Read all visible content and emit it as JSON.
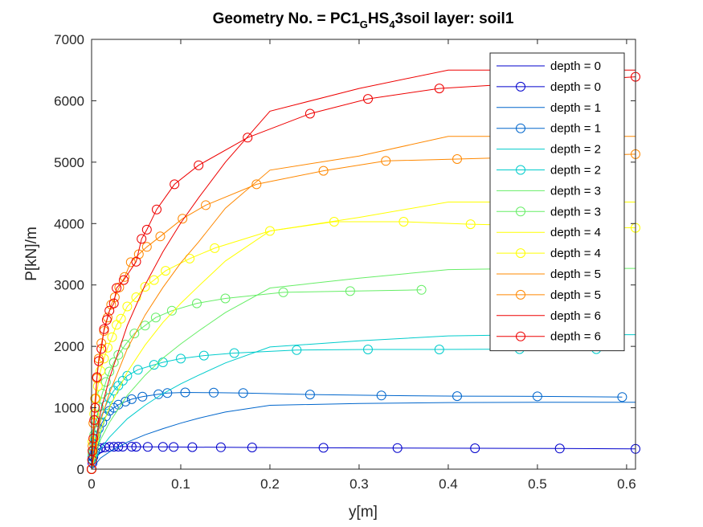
{
  "chart_data": {
    "type": "line",
    "title": {
      "prefix": "Geometry No. = PC1",
      "sub1": "G",
      "mid": "HS",
      "sub2": "4",
      "suffix": "3soil layer: soil1"
    },
    "xlabel": "y[m]",
    "ylabel": "P[kN]/m",
    "xlim": [
      0,
      0.61
    ],
    "ylim": [
      0,
      7000
    ],
    "xticks": [
      0,
      0.1,
      0.2,
      0.3,
      0.4,
      0.5,
      0.6
    ],
    "xtick_labels": [
      "0",
      "0.1",
      "0.2",
      "0.3",
      "0.4",
      "0.5",
      "0.6"
    ],
    "yticks": [
      0,
      1000,
      2000,
      3000,
      4000,
      5000,
      6000,
      7000
    ],
    "ytick_labels": [
      "0",
      "1000",
      "2000",
      "3000",
      "4000",
      "5000",
      "6000",
      "7000"
    ],
    "grid": false,
    "legend_position": "top-right",
    "series": [
      {
        "name": "depth  = 0",
        "color": "#0000cc",
        "marker": "none",
        "x": [
          0,
          0.61
        ],
        "y": [
          0,
          0
        ]
      },
      {
        "name": "depth  = 0",
        "color": "#0000cc",
        "marker": "circle",
        "x": [
          0,
          0.001,
          0.002,
          0.004,
          0.007,
          0.01,
          0.015,
          0.02,
          0.025,
          0.03,
          0.035,
          0.045,
          0.05,
          0.063,
          0.08,
          0.092,
          0.113,
          0.145,
          0.18,
          0.26,
          0.343,
          0.43,
          0.525,
          0.61
        ],
        "y": [
          0,
          100,
          200,
          280,
          320,
          340,
          355,
          362,
          365,
          366,
          366,
          366,
          365,
          364,
          363,
          361,
          359,
          356,
          353,
          348,
          344,
          340,
          336,
          330
        ]
      },
      {
        "name": "depth  = 1",
        "color": "#0066cc",
        "marker": "none",
        "x": [
          0,
          0.01,
          0.02,
          0.04,
          0.06,
          0.08,
          0.1,
          0.12,
          0.15,
          0.2,
          0.3,
          0.4,
          0.5,
          0.61
        ],
        "y": [
          0,
          180,
          280,
          440,
          560,
          660,
          750,
          830,
          930,
          1040,
          1070,
          1085,
          1090,
          1090
        ]
      },
      {
        "name": "depth  = 1",
        "color": "#0066cc",
        "marker": "circle",
        "x": [
          0,
          0.001,
          0.003,
          0.005,
          0.008,
          0.012,
          0.016,
          0.02,
          0.025,
          0.03,
          0.038,
          0.045,
          0.057,
          0.075,
          0.085,
          0.105,
          0.137,
          0.17,
          0.245,
          0.325,
          0.41,
          0.5,
          0.595
        ],
        "y": [
          0,
          200,
          400,
          550,
          660,
          760,
          860,
          950,
          1000,
          1050,
          1100,
          1140,
          1180,
          1220,
          1240,
          1250,
          1245,
          1240,
          1215,
          1200,
          1190,
          1185,
          1175
        ]
      },
      {
        "name": "depth  = 2",
        "color": "#00cccc",
        "marker": "none",
        "x": [
          0,
          0.01,
          0.02,
          0.04,
          0.06,
          0.08,
          0.1,
          0.12,
          0.15,
          0.2,
          0.3,
          0.4,
          0.5,
          0.61
        ],
        "y": [
          0,
          330,
          520,
          820,
          1040,
          1230,
          1390,
          1530,
          1730,
          1990,
          2090,
          2170,
          2190,
          2190
        ]
      },
      {
        "name": "depth  = 2",
        "color": "#00cccc",
        "marker": "circle",
        "x": [
          0,
          0.001,
          0.002,
          0.004,
          0.006,
          0.009,
          0.012,
          0.016,
          0.02,
          0.025,
          0.03,
          0.035,
          0.04,
          0.052,
          0.07,
          0.08,
          0.1,
          0.126,
          0.16,
          0.23,
          0.31,
          0.39,
          0.48,
          0.566
        ],
        "y": [
          0,
          160,
          300,
          480,
          620,
          760,
          900,
          1040,
          1160,
          1280,
          1360,
          1440,
          1520,
          1620,
          1700,
          1740,
          1800,
          1850,
          1890,
          1940,
          1950,
          1950,
          1955,
          1955
        ]
      },
      {
        "name": "depth  = 3",
        "color": "#66ee66",
        "marker": "none",
        "x": [
          0,
          0.01,
          0.02,
          0.04,
          0.06,
          0.08,
          0.1,
          0.12,
          0.15,
          0.2,
          0.3,
          0.4,
          0.5,
          0.61
        ],
        "y": [
          0,
          480,
          760,
          1200,
          1530,
          1810,
          2040,
          2250,
          2550,
          2950,
          3110,
          3250,
          3270,
          3270
        ]
      },
      {
        "name": "depth  = 3",
        "color": "#66ee66",
        "marker": "circle",
        "x": [
          0,
          0.001,
          0.003,
          0.005,
          0.008,
          0.012,
          0.016,
          0.02,
          0.025,
          0.03,
          0.038,
          0.048,
          0.06,
          0.072,
          0.09,
          0.118,
          0.15,
          0.215,
          0.29,
          0.37
        ],
        "y": [
          0,
          250,
          560,
          800,
          1010,
          1230,
          1420,
          1590,
          1740,
          1860,
          2030,
          2210,
          2340,
          2470,
          2580,
          2700,
          2780,
          2880,
          2900,
          2920
        ]
      },
      {
        "name": "depth  = 4",
        "color": "#ffff00",
        "marker": "none",
        "x": [
          0,
          0.01,
          0.02,
          0.04,
          0.06,
          0.08,
          0.1,
          0.12,
          0.15,
          0.2,
          0.3,
          0.4,
          0.5,
          0.61
        ],
        "y": [
          0,
          630,
          1000,
          1580,
          2020,
          2390,
          2700,
          2980,
          3390,
          3880,
          4100,
          4350,
          4350,
          4350
        ]
      },
      {
        "name": "depth  = 4",
        "color": "#ffff00",
        "marker": "circle",
        "x": [
          0,
          0.001,
          0.003,
          0.005,
          0.007,
          0.01,
          0.014,
          0.018,
          0.023,
          0.028,
          0.033,
          0.04,
          0.05,
          0.06,
          0.07,
          0.083,
          0.11,
          0.138,
          0.2,
          0.272,
          0.35,
          0.425,
          0.61
        ],
        "y": [
          0,
          450,
          900,
          1150,
          1350,
          1600,
          1800,
          1980,
          2150,
          2350,
          2450,
          2650,
          2800,
          2970,
          3080,
          3230,
          3430,
          3600,
          3880,
          4030,
          4030,
          3990,
          3930
        ]
      },
      {
        "name": "depth  = 5",
        "color": "#ff8800",
        "marker": "none",
        "x": [
          0,
          0.01,
          0.02,
          0.04,
          0.06,
          0.08,
          0.1,
          0.12,
          0.15,
          0.2,
          0.3,
          0.4,
          0.5,
          0.61
        ],
        "y": [
          0,
          780,
          1240,
          1960,
          2510,
          2960,
          3360,
          3700,
          4250,
          4870,
          5100,
          5420,
          5420,
          5420
        ]
      },
      {
        "name": "depth  = 5",
        "color": "#ff8800",
        "marker": "circle",
        "x": [
          0,
          0.001,
          0.002,
          0.004,
          0.006,
          0.008,
          0.011,
          0.014,
          0.018,
          0.022,
          0.026,
          0.031,
          0.037,
          0.044,
          0.053,
          0.062,
          0.077,
          0.102,
          0.128,
          0.185,
          0.26,
          0.33,
          0.41,
          0.61
        ],
        "y": [
          0,
          380,
          750,
          1150,
          1480,
          1800,
          2050,
          2250,
          2470,
          2680,
          2800,
          2960,
          3130,
          3370,
          3500,
          3620,
          3790,
          4080,
          4300,
          4640,
          4860,
          5020,
          5050,
          5130
        ]
      },
      {
        "name": "depth  = 6",
        "color": "#ee0000",
        "marker": "none",
        "x": [
          0,
          0.01,
          0.02,
          0.04,
          0.06,
          0.08,
          0.1,
          0.12,
          0.15,
          0.2,
          0.3,
          0.4,
          0.5,
          0.61
        ],
        "y": [
          0,
          930,
          1480,
          2340,
          3000,
          3540,
          4010,
          4420,
          5000,
          5830,
          6200,
          6500,
          6500,
          6500
        ]
      },
      {
        "name": "depth  = 6",
        "color": "#ee0000",
        "marker": "circle",
        "x": [
          0,
          0.0005,
          0.001,
          0.002,
          0.003,
          0.004,
          0.006,
          0.008,
          0.011,
          0.014,
          0.017,
          0.02,
          0.025,
          0.028,
          0.036,
          0.05,
          0.056,
          0.062,
          0.073,
          0.093,
          0.12,
          0.175,
          0.245,
          0.31,
          0.39,
          0.61
        ],
        "y": [
          0,
          150,
          300,
          500,
          800,
          1000,
          1500,
          1760,
          1960,
          2280,
          2430,
          2580,
          2700,
          2950,
          3080,
          3380,
          3750,
          3900,
          4230,
          4640,
          4950,
          5400,
          5790,
          6030,
          6200,
          6390
        ]
      }
    ]
  }
}
